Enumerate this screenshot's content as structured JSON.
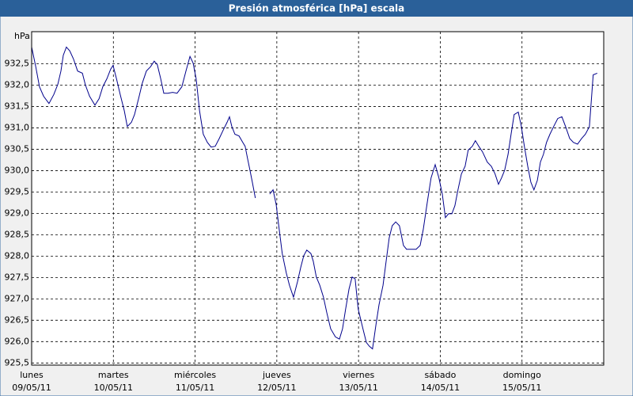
{
  "chart_data": {
    "type": "line",
    "title": "Presión atmosférica [hPa] escala",
    "ylabel": "hPa",
    "grid": true,
    "xlim": [
      0,
      168
    ],
    "xticks": [
      {
        "value": 0,
        "label": "lunes",
        "sublabel": "09/05/11"
      },
      {
        "value": 24,
        "label": "martes",
        "sublabel": "10/05/11"
      },
      {
        "value": 48,
        "label": "miércoles",
        "sublabel": "11/05/11"
      },
      {
        "value": 72,
        "label": "jueves",
        "sublabel": "12/05/11"
      },
      {
        "value": 96,
        "label": "viernes",
        "sublabel": "13/05/11"
      },
      {
        "value": 120,
        "label": "sábado",
        "sublabel": "14/05/11"
      },
      {
        "value": 144,
        "label": "domingo",
        "sublabel": "15/05/11"
      }
    ],
    "ylim": [
      925.45,
      933.25
    ],
    "yticks": [
      {
        "value": 925.5,
        "label": "925,5"
      },
      {
        "value": 926,
        "label": "926,0"
      },
      {
        "value": 926.5,
        "label": "926,5"
      },
      {
        "value": 927,
        "label": "927,0"
      },
      {
        "value": 927.5,
        "label": "927,5"
      },
      {
        "value": 928,
        "label": "928,0"
      },
      {
        "value": 928.5,
        "label": "928,5"
      },
      {
        "value": 929,
        "label": "929,0"
      },
      {
        "value": 929.5,
        "label": "929,5"
      },
      {
        "value": 930,
        "label": "930,0"
      },
      {
        "value": 930.5,
        "label": "930,5"
      },
      {
        "value": 931,
        "label": "931,0"
      },
      {
        "value": 931.5,
        "label": "931,5"
      },
      {
        "value": 932,
        "label": "932,0"
      },
      {
        "value": 932.5,
        "label": "932,5"
      }
    ],
    "x": [
      0,
      1.2,
      2.3,
      3.5,
      5.1,
      6.5,
      7.7,
      8.6,
      9.3,
      10.2,
      11.2,
      12.3,
      13.5,
      14.9,
      15.8,
      17,
      18.6,
      19.8,
      20.9,
      22.1,
      23.2,
      23.9,
      24.9,
      26,
      27.2,
      28.1,
      29.3,
      30.2,
      31.4,
      32.5,
      33.7,
      34.9,
      36,
      36.9,
      37.9,
      38.8,
      40,
      41.4,
      42.7,
      44.1,
      45.3,
      46.5,
      47.4,
      48.3,
      49.3,
      50.4,
      51.6,
      52.7,
      53.9,
      55.1,
      56.2,
      57.4,
      58.1,
      58.8,
      59.7,
      60.9,
      62,
      62.7,
      63.4,
      64.1,
      64.8,
      65.7,
      68,
      69.9,
      70.9,
      71.8,
      72.7,
      73.6,
      74.8,
      75.7,
      76.9,
      78.1,
      79,
      79.9,
      80.8,
      82,
      82.7,
      83.6,
      84.6,
      85.7,
      86.7,
      87.8,
      89.2,
      90.4,
      91.3,
      92.2,
      93.2,
      94.1,
      95,
      95.9,
      97.3,
      98.3,
      99.2,
      100.1,
      101.1,
      102,
      103.2,
      104.1,
      105,
      105.9,
      106.9,
      108,
      109.2,
      110.1,
      111.5,
      112.9,
      114.1,
      115,
      116.2,
      117.3,
      118.5,
      119.6,
      120.6,
      121.5,
      122.4,
      123.4,
      124.3,
      125.2,
      126.2,
      127.3,
      128.2,
      129.4,
      130.3,
      131.3,
      132.4,
      133.8,
      135,
      136.1,
      137.1,
      138,
      138.9,
      139.9,
      140.8,
      141.7,
      142.9,
      143.8,
      144.7,
      145.7,
      146.6,
      147.5,
      148.5,
      149.4,
      150.3,
      151.2,
      152.2,
      153.3,
      154.5,
      155.7,
      156.8,
      158,
      159.1,
      160.3,
      161.5,
      162.6,
      163.8,
      164.9,
      166.1
    ],
    "series": [
      {
        "color": "#00008b",
        "values": [
          932.89,
          932.43,
          931.96,
          931.74,
          931.57,
          931.78,
          932.02,
          932.33,
          932.7,
          932.89,
          932.8,
          932.61,
          932.33,
          932.28,
          932,
          931.74,
          931.53,
          931.68,
          931.96,
          932.15,
          932.37,
          932.46,
          932.15,
          931.78,
          931.4,
          931.03,
          931.13,
          931.31,
          931.68,
          932.05,
          932.33,
          932.43,
          932.56,
          932.48,
          932.15,
          931.81,
          931.81,
          931.83,
          931.81,
          931.96,
          932.33,
          932.67,
          932.52,
          932.15,
          931.4,
          930.85,
          930.66,
          930.55,
          930.57,
          930.75,
          930.94,
          931.13,
          931.26,
          931.03,
          930.85,
          930.81,
          930.66,
          930.57,
          930.29,
          930.01,
          929.73,
          929.36,
          null,
          929.45,
          929.55,
          929.21,
          928.62,
          928.06,
          927.6,
          927.32,
          927.04,
          927.41,
          927.73,
          928.01,
          928.14,
          928.06,
          927.88,
          927.51,
          927.32,
          927.04,
          926.67,
          926.3,
          926.11,
          926.06,
          926.3,
          926.76,
          927.23,
          927.51,
          927.47,
          926.76,
          926.3,
          925.98,
          925.89,
          925.83,
          926.39,
          926.86,
          927.32,
          927.88,
          928.43,
          928.71,
          928.8,
          928.71,
          928.25,
          928.16,
          928.16,
          928.16,
          928.25,
          928.62,
          929.27,
          929.83,
          930.14,
          929.83,
          929.45,
          928.9,
          928.99,
          928.99,
          929.18,
          929.55,
          929.92,
          930.1,
          930.48,
          930.57,
          930.7,
          930.57,
          930.44,
          930.2,
          930.1,
          929.92,
          929.68,
          929.83,
          930.01,
          930.38,
          930.85,
          931.31,
          931.37,
          931.03,
          930.57,
          930.1,
          929.73,
          929.55,
          929.77,
          930.2,
          930.38,
          930.66,
          930.85,
          931.03,
          931.22,
          931.26,
          931.03,
          930.75,
          930.66,
          930.62,
          930.75,
          930.85,
          931.03,
          932.24,
          932.28
        ]
      }
    ]
  }
}
